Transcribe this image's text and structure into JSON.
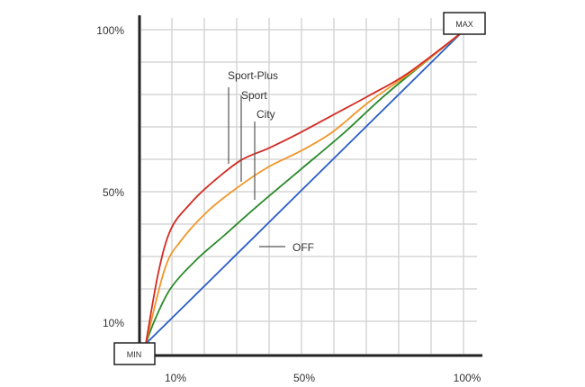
{
  "chart_data": {
    "type": "line",
    "title": "",
    "xlabel": "",
    "ylabel": "",
    "xlim": [
      0,
      100
    ],
    "ylim": [
      0,
      100
    ],
    "grid": true,
    "x_tick_labels": [
      "10%",
      "50%",
      "100%"
    ],
    "y_tick_labels": [
      "100%",
      "50%",
      "10%"
    ],
    "min_label": "MIN",
    "max_label": "MAX",
    "series": [
      {
        "name": "Sport-Plus",
        "color": "#d42a23",
        "points": [
          [
            0,
            0
          ],
          [
            4,
            23
          ],
          [
            8,
            37
          ],
          [
            14,
            45
          ],
          [
            20,
            51
          ],
          [
            30,
            59
          ],
          [
            39,
            63
          ],
          [
            49,
            68
          ],
          [
            60,
            74
          ],
          [
            71,
            80
          ],
          [
            83,
            87
          ],
          [
            100,
            100
          ]
        ]
      },
      {
        "name": "Sport",
        "color": "#f0962a",
        "points": [
          [
            0,
            0
          ],
          [
            6,
            24
          ],
          [
            11,
            33
          ],
          [
            20,
            43
          ],
          [
            30,
            51
          ],
          [
            39,
            57
          ],
          [
            49,
            62
          ],
          [
            59,
            68
          ],
          [
            71,
            78
          ],
          [
            85,
            88
          ],
          [
            100,
            100
          ]
        ]
      },
      {
        "name": "City",
        "color": "#2a8a2a",
        "points": [
          [
            0,
            0
          ],
          [
            3,
            8
          ],
          [
            8,
            18
          ],
          [
            16,
            27
          ],
          [
            25,
            35
          ],
          [
            35,
            44
          ],
          [
            49,
            56
          ],
          [
            63,
            68
          ],
          [
            77,
            81
          ],
          [
            100,
            100
          ]
        ]
      },
      {
        "name": "OFF",
        "color": "#2a5cc8",
        "points": [
          [
            0,
            0
          ],
          [
            100,
            100
          ]
        ]
      }
    ]
  }
}
